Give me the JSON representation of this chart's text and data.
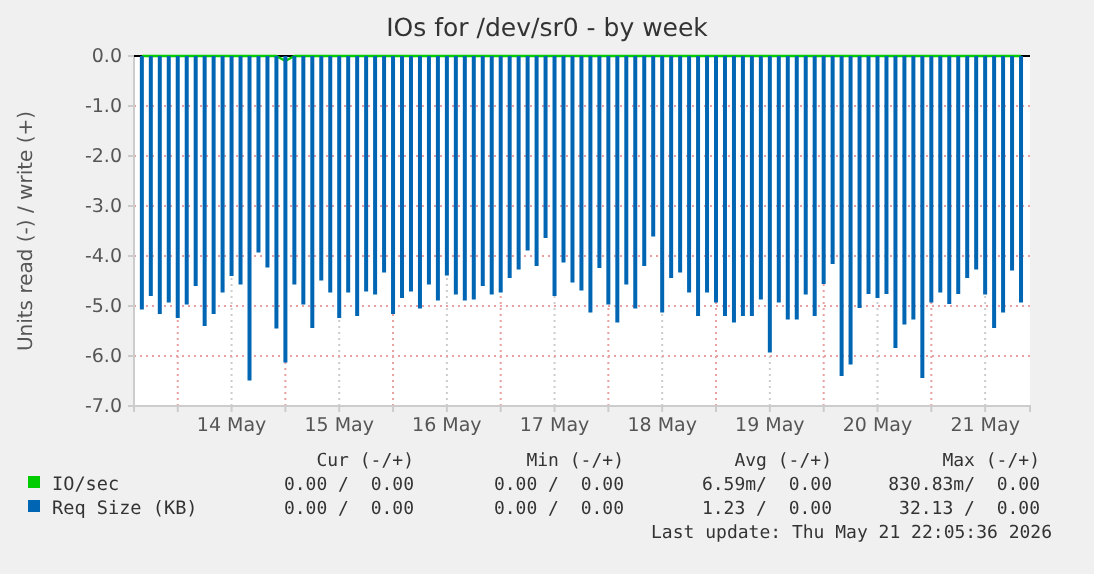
{
  "chart_data": {
    "type": "bar",
    "title": "IOs for /dev/sr0 - by week",
    "ylabel": "Units read (-) / write (+)",
    "x": [
      "2026-05-13T16:00",
      "2026-05-13T18:00",
      "2026-05-13T20:00",
      "2026-05-13T22:00",
      "2026-05-14T00:00",
      "2026-05-14T02:00",
      "2026-05-14T04:00",
      "2026-05-14T06:00",
      "2026-05-14T08:00",
      "2026-05-14T10:00",
      "2026-05-14T12:00",
      "2026-05-14T14:00",
      "2026-05-14T16:00",
      "2026-05-14T18:00",
      "2026-05-14T20:00",
      "2026-05-14T22:00",
      "2026-05-15T00:00",
      "2026-05-15T02:00",
      "2026-05-15T04:00",
      "2026-05-15T06:00",
      "2026-05-15T08:00",
      "2026-05-15T10:00",
      "2026-05-15T12:00",
      "2026-05-15T14:00",
      "2026-05-15T16:00",
      "2026-05-15T18:00",
      "2026-05-15T20:00",
      "2026-05-15T22:00",
      "2026-05-16T00:00",
      "2026-05-16T02:00",
      "2026-05-16T04:00",
      "2026-05-16T06:00",
      "2026-05-16T08:00",
      "2026-05-16T10:00",
      "2026-05-16T12:00",
      "2026-05-16T14:00",
      "2026-05-16T16:00",
      "2026-05-16T18:00",
      "2026-05-16T20:00",
      "2026-05-16T22:00",
      "2026-05-17T00:00",
      "2026-05-17T02:00",
      "2026-05-17T04:00",
      "2026-05-17T06:00",
      "2026-05-17T08:00",
      "2026-05-17T10:00",
      "2026-05-17T12:00",
      "2026-05-17T14:00",
      "2026-05-17T16:00",
      "2026-05-17T18:00",
      "2026-05-17T20:00",
      "2026-05-17T22:00",
      "2026-05-18T00:00",
      "2026-05-18T02:00",
      "2026-05-18T04:00",
      "2026-05-18T06:00",
      "2026-05-18T08:00",
      "2026-05-18T10:00",
      "2026-05-18T12:00",
      "2026-05-18T14:00",
      "2026-05-18T16:00",
      "2026-05-18T18:00",
      "2026-05-18T20:00",
      "2026-05-18T22:00",
      "2026-05-19T00:00",
      "2026-05-19T02:00",
      "2026-05-19T04:00",
      "2026-05-19T06:00",
      "2026-05-19T08:00",
      "2026-05-19T10:00",
      "2026-05-19T12:00",
      "2026-05-19T14:00",
      "2026-05-19T16:00",
      "2026-05-19T18:00",
      "2026-05-19T20:00",
      "2026-05-19T22:00",
      "2026-05-20T00:00",
      "2026-05-20T02:00",
      "2026-05-20T04:00",
      "2026-05-20T06:00",
      "2026-05-20T08:00",
      "2026-05-20T10:00",
      "2026-05-20T12:00",
      "2026-05-20T14:00",
      "2026-05-20T16:00",
      "2026-05-20T18:00",
      "2026-05-20T20:00",
      "2026-05-20T22:00",
      "2026-05-21T00:00",
      "2026-05-21T02:00",
      "2026-05-21T04:00",
      "2026-05-21T06:00",
      "2026-05-21T08:00",
      "2026-05-21T10:00",
      "2026-05-21T12:00",
      "2026-05-21T14:00",
      "2026-05-21T16:00",
      "2026-05-21T18:00",
      "2026-05-21T20:00"
    ],
    "series": [
      {
        "name": "IO/sec",
        "type": "line",
        "color": "#00cc00",
        "values": [
          0,
          0,
          0,
          0,
          0,
          0,
          0,
          0,
          0,
          0,
          0,
          0,
          0,
          0,
          0,
          0,
          -0.1,
          0,
          0,
          0,
          0,
          0,
          0,
          0,
          0,
          0,
          0,
          0,
          0,
          0,
          0,
          0,
          0,
          0,
          0,
          0,
          0,
          0,
          0,
          0,
          0,
          0,
          0,
          0,
          0,
          0,
          0,
          0,
          0,
          0,
          0,
          0,
          0,
          0,
          0,
          0,
          0,
          0,
          0,
          0,
          0,
          0,
          0,
          0,
          0,
          0,
          0,
          0,
          0,
          0,
          0,
          0,
          0,
          0,
          0,
          0,
          0,
          0,
          0,
          0,
          0,
          0,
          0,
          0,
          0,
          0,
          0,
          0,
          0,
          0,
          0,
          0,
          0,
          0,
          0,
          0,
          0,
          0,
          0
        ]
      },
      {
        "name": "Req Size (KB)",
        "color": "#0066b3",
        "values": [
          -5.07,
          -4.8,
          -5.16,
          -4.93,
          -5.24,
          -4.97,
          -4.6,
          -5.4,
          -5.16,
          -4.73,
          -4.4,
          -4.57,
          -6.49,
          -3.93,
          -4.23,
          -5.45,
          -6.13,
          -4.57,
          -4.97,
          -5.44,
          -4.49,
          -4.73,
          -5.24,
          -4.73,
          -5.2,
          -4.71,
          -4.77,
          -4.33,
          -5.16,
          -4.84,
          -4.71,
          -5.05,
          -4.57,
          -4.89,
          -4.39,
          -4.77,
          -4.89,
          -4.87,
          -4.6,
          -4.77,
          -4.73,
          -4.44,
          -4.27,
          -3.89,
          -4.2,
          -3.64,
          -4.8,
          -4.13,
          -4.53,
          -4.69,
          -5.13,
          -4.24,
          -4.97,
          -5.33,
          -4.57,
          -5.05,
          -4.2,
          -3.61,
          -5.13,
          -4.44,
          -4.33,
          -4.73,
          -5.2,
          -4.73,
          -4.93,
          -5.2,
          -5.33,
          -5.2,
          -5.2,
          -4.87,
          -5.93,
          -4.93,
          -5.27,
          -5.27,
          -4.77,
          -5.2,
          -4.56,
          -4.16,
          -6.4,
          -6.17,
          -5.04,
          -4.76,
          -4.84,
          -4.76,
          -5.84,
          -5.37,
          -5.27,
          -6.44,
          -4.93,
          -4.73,
          -4.96,
          -4.76,
          -4.44,
          -4.27,
          -4.77,
          -5.44,
          -5.13,
          -4.29,
          -4.93
        ]
      }
    ],
    "xlim": [
      "2026-05-13T14:15",
      "2026-05-21T22:00"
    ],
    "xticks": [
      {
        "value": "2026-05-14T00:00",
        "label": null
      },
      {
        "value": "2026-05-14T12:00",
        "label": "14 May"
      },
      {
        "value": "2026-05-15T00:00",
        "label": null
      },
      {
        "value": "2026-05-15T12:00",
        "label": "15 May"
      },
      {
        "value": "2026-05-16T00:00",
        "label": null
      },
      {
        "value": "2026-05-16T12:00",
        "label": "16 May"
      },
      {
        "value": "2026-05-17T00:00",
        "label": null
      },
      {
        "value": "2026-05-17T12:00",
        "label": "17 May"
      },
      {
        "value": "2026-05-18T00:00",
        "label": null
      },
      {
        "value": "2026-05-18T12:00",
        "label": "18 May"
      },
      {
        "value": "2026-05-19T00:00",
        "label": null
      },
      {
        "value": "2026-05-19T12:00",
        "label": "19 May"
      },
      {
        "value": "2026-05-20T00:00",
        "label": null
      },
      {
        "value": "2026-05-20T12:00",
        "label": "20 May"
      },
      {
        "value": "2026-05-21T00:00",
        "label": null
      },
      {
        "value": "2026-05-21T12:00",
        "label": "21 May"
      }
    ],
    "ylim": [
      -7,
      0
    ],
    "yticks": [
      {
        "value": 0,
        "label": "0.0"
      },
      {
        "value": -1,
        "label": "-1.0"
      },
      {
        "value": -2,
        "label": "-2.0"
      },
      {
        "value": -3,
        "label": "-3.0"
      },
      {
        "value": -4,
        "label": "-4.0"
      },
      {
        "value": -5,
        "label": "-5.0"
      },
      {
        "value": -6,
        "label": "-6.0"
      },
      {
        "value": -7,
        "label": "-7.0"
      }
    ],
    "grid": true,
    "legend": "bottom",
    "annotations": [
      "Cur (-/+)",
      "Min (-/+)",
      "Avg (-/+)",
      "Max (-/+)",
      "0.00 /  0.00",
      "0.00 /  0.00",
      "6.59m/  0.00",
      "830.83m/  0.00",
      "0.00 /  0.00",
      "0.00 /  0.00",
      "1.23 /  0.00",
      "32.13 /  0.00",
      "Last update: Thu May 21 22:05:36 2026"
    ]
  }
}
